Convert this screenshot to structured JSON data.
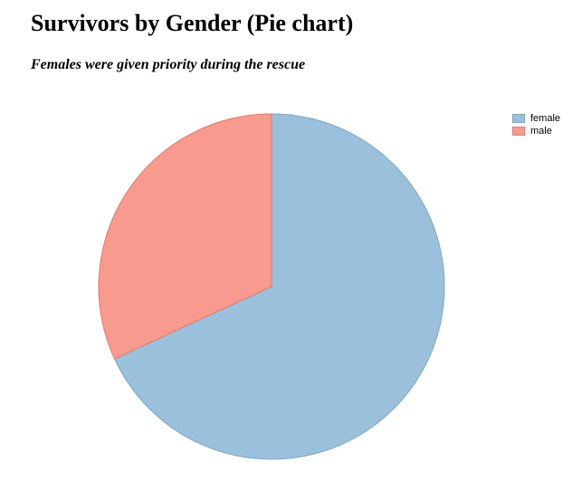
{
  "chart_data": {
    "type": "pie",
    "title": "Survivors by Gender (Pie chart)",
    "subtitle": "Females were given priority during the rescue",
    "categories": [
      "female",
      "male"
    ],
    "values": [
      233,
      109
    ],
    "colors": [
      "#9bc0db",
      "#f89a8d"
    ],
    "stroke_colors": [
      "#7fa6c3",
      "#e07d71"
    ],
    "legend_position": "top-right",
    "start_angle": "12 o'clock",
    "direction": "clockwise"
  }
}
